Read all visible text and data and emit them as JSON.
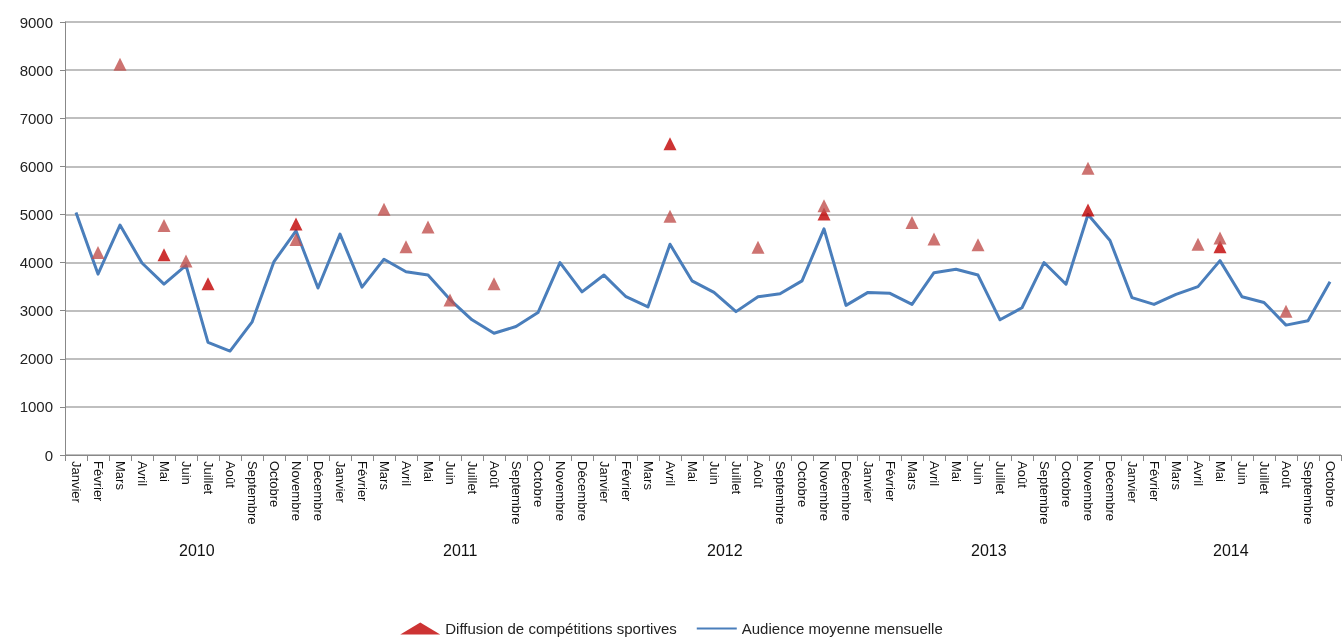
{
  "chart_data": {
    "type": "scatter",
    "categories": [
      "Janvier",
      "Février",
      "Mars",
      "Avril",
      "Mai",
      "Juin",
      "Juillet",
      "Août",
      "Septembre",
      "Octobre",
      "Novembre",
      "Décembre",
      "Janvier",
      "Février",
      "Mars",
      "Avril",
      "Mai",
      "Juin",
      "Juillet",
      "Août",
      "Septembre",
      "Octobre",
      "Novembre",
      "Décembre",
      "Janvier",
      "Février",
      "Mars",
      "Avril",
      "Mai",
      "Juin",
      "Juillet",
      "Août",
      "Septembre",
      "Octobre",
      "Novembre",
      "Décembre",
      "Janvier",
      "Février",
      "Mars",
      "Avril",
      "Mai",
      "Juin",
      "Juillet",
      "Août",
      "Septembre",
      "Octobre",
      "Novembre",
      "Décembre",
      "Janvier",
      "Février",
      "Mars",
      "Avril",
      "Mai",
      "Juin",
      "Juillet",
      "Août",
      "Septembre",
      "Octobre"
    ],
    "series": [
      {
        "name": "Diffusion de compétitions sportives",
        "marker": "triangle",
        "color": "#c00000",
        "values": [
          null,
          null,
          null,
          null,
          4160,
          null,
          3560,
          null,
          null,
          null,
          4800,
          null,
          null,
          null,
          null,
          null,
          null,
          null,
          null,
          null,
          null,
          null,
          null,
          null,
          null,
          null,
          null,
          6470,
          null,
          null,
          null,
          null,
          null,
          null,
          5010,
          null,
          null,
          null,
          null,
          null,
          null,
          null,
          null,
          null,
          null,
          null,
          5090,
          null,
          null,
          null,
          null,
          null,
          4330,
          null,
          null,
          null,
          null,
          null
        ]
      },
      {
        "name": "Audience moyenne mensuelle",
        "type": "line",
        "marker": "none",
        "color": "#4a7ebb",
        "values": [
          5040,
          3760,
          4780,
          3990,
          3550,
          3940,
          2340,
          2160,
          2760,
          4020,
          4660,
          3470,
          4590,
          3490,
          4070,
          3810,
          3740,
          3230,
          2810,
          2530,
          2670,
          2960,
          4000,
          3390,
          3740,
          3290,
          3080,
          4380,
          3620,
          3380,
          2980,
          3290,
          3350,
          3620,
          4700,
          3110,
          3380,
          3360,
          3130,
          3790,
          3860,
          3740,
          2810,
          3060,
          4000,
          3550,
          5000,
          4460,
          3270,
          3130,
          3340,
          3500,
          4040,
          3290,
          3170,
          2700,
          2790,
          3600
        ]
      },
      {
        "marker": "triangle",
        "color": "#c0504d",
        "values": [
          null,
          4210,
          8120,
          null,
          4770,
          4030,
          null,
          null,
          null,
          null,
          4480,
          null,
          null,
          null,
          5110,
          4330,
          4740,
          3220,
          null,
          3560,
          null,
          null,
          null,
          null,
          null,
          null,
          null,
          4960,
          null,
          null,
          null,
          4320,
          null,
          null,
          5180,
          null,
          null,
          null,
          4830,
          4490,
          null,
          4370,
          null,
          null,
          null,
          null,
          5960,
          null,
          null,
          null,
          null,
          4380,
          4510,
          null,
          null,
          2990,
          null,
          null
        ]
      }
    ],
    "annotations": [
      "2010",
      "2011",
      "2012",
      "2013",
      "2014"
    ],
    "ylim": [
      0,
      9000
    ],
    "yticks": [
      0,
      1000,
      2000,
      3000,
      4000,
      5000,
      6000,
      7000,
      8000,
      9000
    ],
    "grid": "y",
    "legend": "bottom"
  }
}
